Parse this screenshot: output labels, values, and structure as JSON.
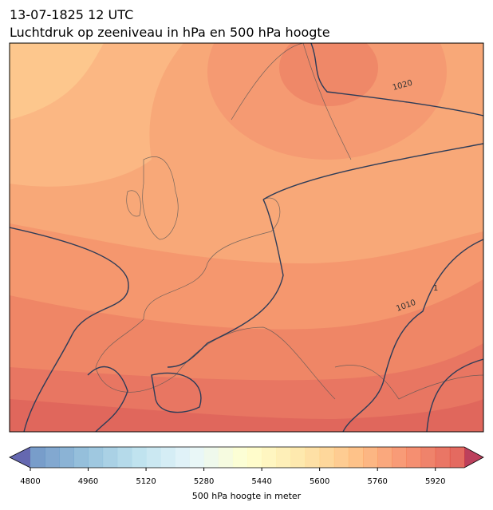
{
  "header": {
    "title": "13-07-1825 12 UTC",
    "subtitle": "Luchtdruk op zeeniveau in hPa en 500 hPa hoogte"
  },
  "map": {
    "contour_labels": [
      "1020",
      "1010",
      "1"
    ]
  },
  "colorbar": {
    "label": "500 hPa hoogte in meter",
    "range": [
      4800,
      6000
    ],
    "ticks": [
      4800,
      4960,
      5120,
      5280,
      5440,
      5600,
      5760,
      5920
    ]
  }
}
